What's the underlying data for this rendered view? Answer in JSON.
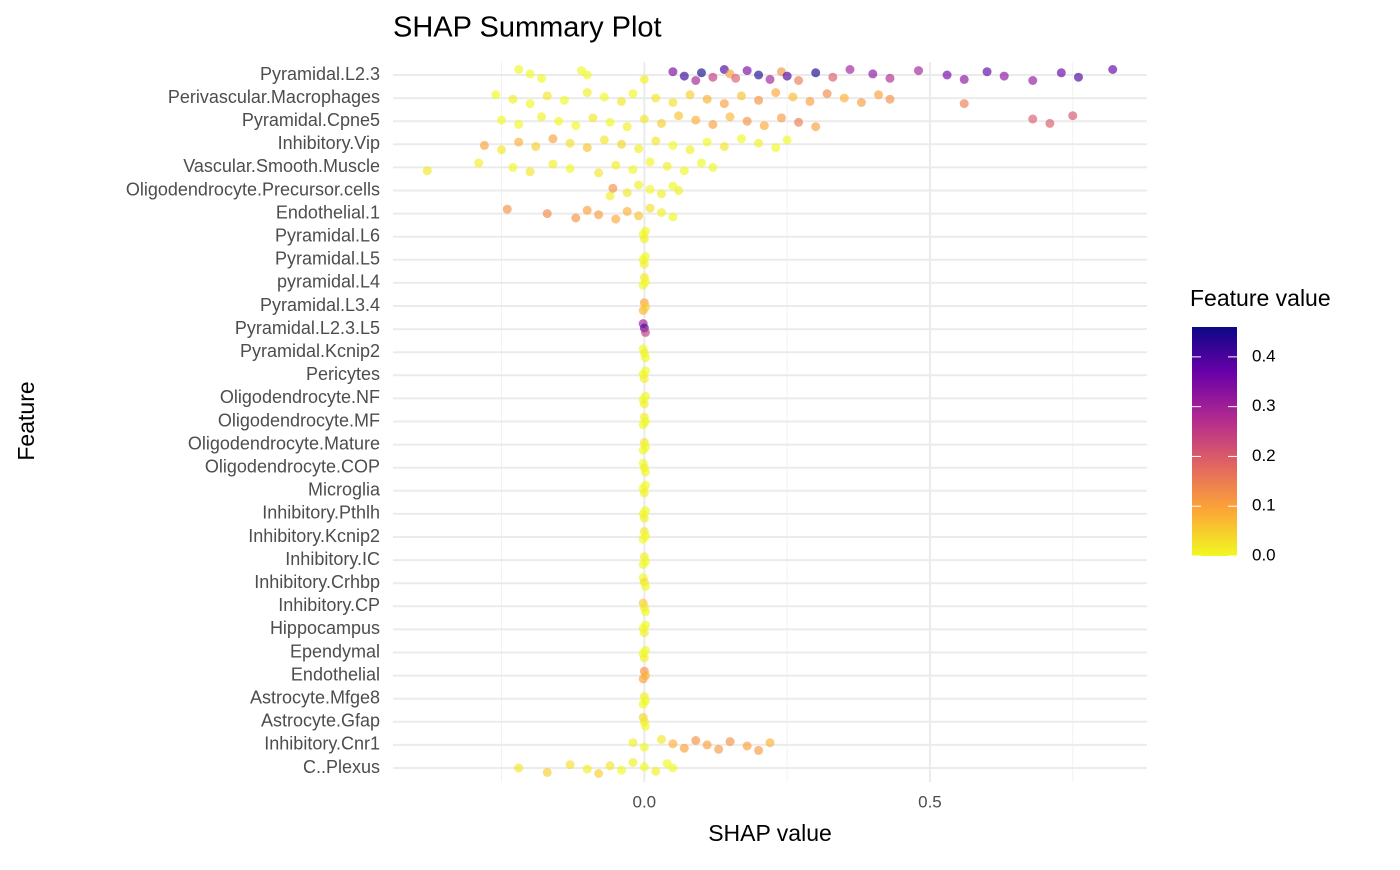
{
  "chart_data": {
    "type": "beeswarm",
    "title": "SHAP Summary Plot",
    "xlabel": "SHAP value",
    "ylabel": "Feature",
    "categories": [
      "Pyramidal.L2.3",
      "Perivascular.Macrophages",
      "Pyramidal.Cpne5",
      "Inhibitory.Vip",
      "Vascular.Smooth.Muscle",
      "Oligodendrocyte.Precursor.cells",
      "Endothelial.1",
      "Pyramidal.L6",
      "Pyramidal.L5",
      "pyramidal.L4",
      "Pyramidal.L3.4",
      "Pyramidal.L2.3.L5",
      "Pyramidal.Kcnip2",
      "Pericytes",
      "Oligodendrocyte.NF",
      "Oligodendrocyte.MF",
      "Oligodendrocyte.Mature",
      "Oligodendrocyte.COP",
      "Microglia",
      "Inhibitory.Pthlh",
      "Inhibitory.Kcnip2",
      "Inhibitory.IC",
      "Inhibitory.Crhbp",
      "Inhibitory.CP",
      "Hippocampus",
      "Ependymal",
      "Endothelial",
      "Astrocyte.Mfge8",
      "Astrocyte.Gfap",
      "Inhibitory.Cnr1",
      "C..Plexus"
    ],
    "shap": [
      [
        -0.22,
        -0.2,
        -0.18,
        -0.11,
        -0.1,
        0.0,
        0.05,
        0.07,
        0.09,
        0.1,
        0.12,
        0.14,
        0.15,
        0.16,
        0.18,
        0.2,
        0.22,
        0.24,
        0.25,
        0.27,
        0.3,
        0.33,
        0.36,
        0.4,
        0.43,
        0.48,
        0.53,
        0.56,
        0.6,
        0.63,
        0.68,
        0.73,
        0.76,
        0.82
      ],
      [
        -0.26,
        -0.23,
        -0.2,
        -0.17,
        -0.14,
        -0.1,
        -0.07,
        -0.04,
        -0.02,
        0.02,
        0.05,
        0.08,
        0.11,
        0.14,
        0.17,
        0.2,
        0.23,
        0.26,
        0.29,
        0.32,
        0.35,
        0.38,
        0.41,
        0.43,
        0.56
      ],
      [
        -0.25,
        -0.22,
        -0.18,
        -0.15,
        -0.12,
        -0.09,
        -0.06,
        -0.03,
        0.0,
        0.03,
        0.06,
        0.09,
        0.12,
        0.15,
        0.18,
        0.21,
        0.24,
        0.27,
        0.3,
        0.68,
        0.71,
        0.75
      ],
      [
        -0.28,
        -0.25,
        -0.22,
        -0.19,
        -0.16,
        -0.13,
        -0.1,
        -0.07,
        -0.04,
        -0.01,
        0.02,
        0.05,
        0.08,
        0.11,
        0.14,
        0.17,
        0.2,
        0.23,
        0.25
      ],
      [
        -0.38,
        -0.29,
        -0.23,
        -0.2,
        -0.16,
        -0.13,
        -0.08,
        -0.05,
        -0.02,
        0.01,
        0.04,
        0.07,
        0.1,
        0.12
      ],
      [
        -0.06,
        -0.055,
        -0.03,
        -0.01,
        0.01,
        0.03,
        0.05,
        0.06
      ],
      [
        -0.24,
        -0.17,
        -0.12,
        -0.1,
        -0.08,
        -0.05,
        -0.03,
        -0.01,
        0.01,
        0.03,
        0.05
      ],
      [
        -0.002,
        0.0,
        0.002
      ],
      [
        -0.002,
        0.0,
        0.002
      ],
      [
        -0.002,
        0.0,
        0.002
      ],
      [
        -0.002,
        0.0,
        0.002
      ],
      [
        -0.002,
        0.0,
        0.002
      ],
      [
        -0.002,
        0.0,
        0.002
      ],
      [
        -0.002,
        0.0,
        0.002
      ],
      [
        -0.002,
        0.0,
        0.002
      ],
      [
        -0.002,
        0.0,
        0.002
      ],
      [
        -0.002,
        0.0,
        0.002
      ],
      [
        -0.002,
        0.0,
        0.002
      ],
      [
        -0.002,
        0.0,
        0.002
      ],
      [
        -0.002,
        0.0,
        0.002
      ],
      [
        -0.002,
        0.0,
        0.002
      ],
      [
        -0.002,
        0.0,
        0.002
      ],
      [
        -0.002,
        0.0,
        0.002
      ],
      [
        -0.002,
        0.0,
        0.002
      ],
      [
        -0.002,
        0.0,
        0.002
      ],
      [
        -0.002,
        0.0,
        0.002
      ],
      [
        -0.002,
        0.0,
        0.002
      ],
      [
        -0.002,
        0.0,
        0.002
      ],
      [
        -0.002,
        0.0,
        0.002
      ],
      [
        -0.02,
        0.0,
        0.03,
        0.05,
        0.07,
        0.09,
        0.11,
        0.13,
        0.15,
        0.18,
        0.2,
        0.22
      ],
      [
        -0.22,
        -0.17,
        -0.13,
        -0.1,
        -0.08,
        -0.06,
        -0.04,
        -0.02,
        0.0,
        0.02,
        0.04,
        0.05
      ]
    ],
    "feature_values": [
      [
        0,
        0,
        0,
        0,
        0,
        0.01,
        0.35,
        0.42,
        0.3,
        0.45,
        0.25,
        0.4,
        0.1,
        0.2,
        0.35,
        0.44,
        0.3,
        0.12,
        0.4,
        0.15,
        0.45,
        0.2,
        0.3,
        0.33,
        0.28,
        0.3,
        0.36,
        0.33,
        0.38,
        0.33,
        0.32,
        0.37,
        0.4,
        0.38
      ],
      [
        0,
        0.01,
        0,
        0.02,
        0,
        0.01,
        0,
        0.02,
        0,
        0.02,
        0.03,
        0.05,
        0.08,
        0.1,
        0.06,
        0.12,
        0.09,
        0.07,
        0.1,
        0.13,
        0.08,
        0.11,
        0.1,
        0.12,
        0.15
      ],
      [
        0,
        0,
        0.01,
        0,
        0,
        0.02,
        0,
        0.01,
        0.02,
        0.05,
        0.06,
        0.08,
        0.1,
        0.07,
        0.12,
        0.09,
        0.11,
        0.15,
        0.1,
        0.2,
        0.2,
        0.21
      ],
      [
        0.1,
        0.02,
        0.08,
        0.05,
        0.1,
        0.03,
        0.06,
        0.02,
        0.04,
        0.01,
        0.02,
        0,
        0.01,
        0,
        0.02,
        0,
        0.01,
        0,
        0
      ],
      [
        0.02,
        0.01,
        0,
        0.02,
        0.01,
        0,
        0.02,
        0.01,
        0,
        0,
        0.01,
        0,
        0,
        0
      ],
      [
        0.01,
        0.12,
        0.02,
        0.01,
        0,
        0.01,
        0,
        0.01
      ],
      [
        0.12,
        0.13,
        0.12,
        0.1,
        0.11,
        0.09,
        0.08,
        0.06,
        0.03,
        0.01,
        0
      ],
      [
        0,
        0.01,
        0
      ],
      [
        0,
        0.01,
        0
      ],
      [
        0,
        0.02,
        0
      ],
      [
        0.08,
        0.1,
        0.05
      ],
      [
        0.3,
        0.4,
        0.25
      ],
      [
        0,
        0.01,
        0
      ],
      [
        0,
        0.01,
        0
      ],
      [
        0,
        0.01,
        0
      ],
      [
        0,
        0.01,
        0
      ],
      [
        0,
        0.02,
        0
      ],
      [
        0,
        0.01,
        0
      ],
      [
        0,
        0.01,
        0
      ],
      [
        0,
        0.01,
        0
      ],
      [
        0,
        0.02,
        0
      ],
      [
        0,
        0.01,
        0
      ],
      [
        0,
        0.03,
        0
      ],
      [
        0.05,
        0.02,
        0
      ],
      [
        0,
        0.01,
        0
      ],
      [
        0,
        0.01,
        0
      ],
      [
        0.1,
        0.12,
        0.08
      ],
      [
        0,
        0.01,
        0
      ],
      [
        0.04,
        0.02,
        0
      ],
      [
        0.01,
        0,
        0.02,
        0.08,
        0.1,
        0.12,
        0.1,
        0.11,
        0.12,
        0.1,
        0.11,
        0.08
      ],
      [
        0.02,
        0.05,
        0.03,
        0.01,
        0.05,
        0.02,
        0,
        0.01,
        0,
        0.01,
        0,
        0
      ]
    ],
    "xlim": [
      -0.44,
      0.88
    ],
    "xticks": [
      {
        "value": 0,
        "label": "0.0"
      },
      {
        "value": 0.5,
        "label": "0.5"
      }
    ],
    "xminor": [
      -0.25,
      0.25,
      0.75
    ],
    "grid": true,
    "colorbar": {
      "title": "Feature value",
      "lim": [
        0,
        0.46
      ],
      "ticks": [
        {
          "value": 0,
          "label": "0.0"
        },
        0.1,
        0.2,
        0.3,
        0.4
      ]
    },
    "colormap": [
      "#f0f921",
      "#fca636",
      "#e16462",
      "#b12a90",
      "#6a00a8",
      "#0d0887"
    ],
    "point_opacity": 0.65
  }
}
